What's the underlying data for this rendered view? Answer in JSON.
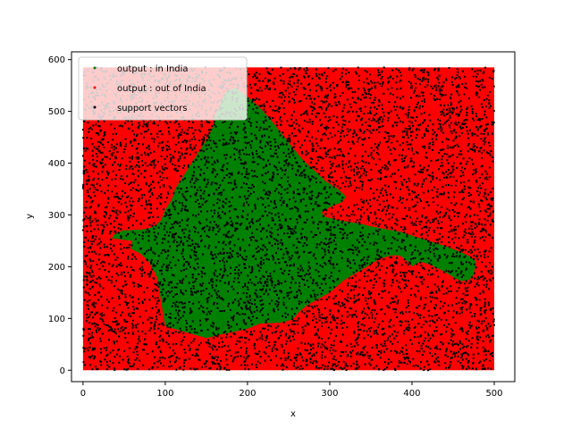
{
  "chart_data": {
    "type": "scatter",
    "title": "",
    "xlabel": "x",
    "ylabel": "y",
    "xlim": [
      -14,
      525
    ],
    "ylim": [
      615,
      -22
    ],
    "y_inverted": true,
    "xticks": [
      0,
      100,
      200,
      300,
      400,
      500
    ],
    "yticks": [
      0,
      100,
      200,
      300,
      400,
      500,
      600
    ],
    "grid": false,
    "legend_position": "top-left",
    "series": [
      {
        "name": "output : in India",
        "color": "#008000",
        "region_outline_x": [
          100,
          150,
          170,
          180,
          200,
          215,
          240,
          255,
          262,
          272,
          300,
          318,
          340,
          360,
          375,
          385,
          395,
          400,
          404,
          410,
          420,
          430,
          440,
          450,
          460,
          470,
          475,
          478,
          470,
          460,
          450,
          440,
          430,
          420,
          410,
          400,
          385,
          370,
          360,
          350,
          340,
          330,
          310,
          295,
          290,
          300,
          315,
          320,
          310,
          295,
          282,
          268,
          255,
          240,
          225,
          210,
          195,
          185,
          175,
          168,
          162,
          158,
          150,
          140,
          130,
          120,
          112,
          108,
          100,
          95,
          88,
          82,
          72,
          48,
          38,
          35,
          48,
          60,
          58,
          70,
          80,
          90
        ],
        "region_outline_y": [
          85,
          62,
          70,
          73,
          80,
          90,
          92,
          98,
          112,
          125,
          150,
          175,
          195,
          215,
          222,
          222,
          210,
          200,
          205,
          210,
          205,
          198,
          190,
          180,
          172,
          175,
          185,
          210,
          220,
          228,
          234,
          240,
          245,
          250,
          255,
          260,
          268,
          272,
          275,
          278,
          282,
          285,
          290,
          296,
          305,
          315,
          325,
          335,
          350,
          365,
          385,
          405,
          430,
          460,
          490,
          515,
          535,
          545,
          540,
          520,
          495,
          470,
          445,
          420,
          395,
          370,
          350,
          330,
          310,
          290,
          280,
          275,
          272,
          270,
          262,
          255,
          252,
          250,
          235,
          225,
          210,
          180
        ]
      },
      {
        "name": "output : out of India",
        "color": "#ff0000",
        "domain_x": [
          0,
          500
        ],
        "domain_y": [
          0,
          585
        ]
      },
      {
        "name": "support vectors",
        "color": "#000000",
        "marker_size": 2,
        "approx_count": 6500,
        "x_range": [
          0,
          500
        ],
        "y_range": [
          0,
          585
        ]
      }
    ],
    "decision_boundary_label": ""
  }
}
